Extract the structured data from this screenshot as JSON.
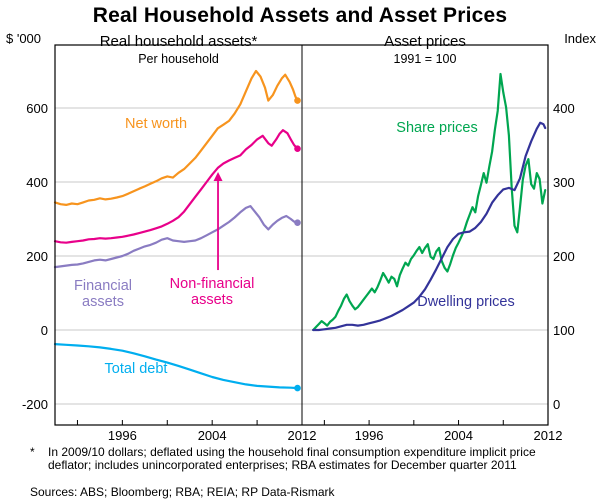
{
  "title": "Real Household Assets and Asset Prices",
  "left_axis_unit": "$ '000",
  "right_axis_unit": "Index",
  "footnote": {
    "marker": "*",
    "text": "In 2009/10 dollars; deflated using the household final consumption expenditure implicit price deflator; includes unincorporated enterprises; RBA estimates for December quarter 2011"
  },
  "sources": "Sources: ABS; Bloomberg; RBA; REIA; RP Data-Rismark",
  "chart_data": [
    {
      "type": "line",
      "panel": "left",
      "title": "Real household assets*",
      "subtitle": "Per household",
      "x_domain": [
        1990,
        2012
      ],
      "yticks": [
        -200,
        0,
        200,
        400,
        600
      ],
      "xticks_labeled": [
        1996,
        2004,
        2012
      ],
      "xticks_minor": [
        1992,
        1996,
        2000,
        2004,
        2008
      ],
      "ylabel_side": "left",
      "grid": true,
      "series": [
        {
          "name": "Net worth",
          "color": "#F7941E",
          "end_dot": true,
          "x": [
            1990,
            1990.5,
            1991,
            1991.5,
            1992,
            1992.5,
            1993,
            1993.5,
            1994,
            1994.5,
            1995,
            1995.5,
            1996,
            1996.5,
            1997,
            1997.5,
            1998,
            1998.5,
            1999,
            1999.5,
            2000,
            2000.5,
            2001,
            2001.5,
            2002,
            2002.5,
            2003,
            2003.5,
            2004,
            2004.5,
            2005,
            2005.5,
            2006,
            2006.5,
            2007,
            2007.5,
            2007.9,
            2008.3,
            2008.7,
            2009,
            2009.4,
            2009.8,
            2010.2,
            2010.5,
            2010.9,
            2011.2,
            2011.4,
            2011.6
          ],
          "values": [
            345,
            340,
            338,
            342,
            340,
            345,
            350,
            352,
            356,
            353,
            355,
            358,
            362,
            368,
            375,
            382,
            388,
            395,
            402,
            410,
            415,
            412,
            425,
            435,
            450,
            465,
            485,
            505,
            525,
            545,
            555,
            565,
            585,
            610,
            645,
            680,
            700,
            685,
            655,
            620,
            635,
            660,
            680,
            690,
            670,
            650,
            632,
            620
          ]
        },
        {
          "name": "Non-financial assets",
          "color": "#E8008A",
          "end_dot": true,
          "x": [
            1990,
            1990.5,
            1991,
            1991.5,
            1992,
            1992.5,
            1993,
            1993.5,
            1994,
            1994.5,
            1995,
            1995.5,
            1996,
            1996.5,
            1997,
            1997.5,
            1998,
            1998.5,
            1999,
            1999.5,
            2000,
            2000.5,
            2001,
            2001.5,
            2002,
            2002.5,
            2003,
            2003.5,
            2004,
            2004.5,
            2005,
            2005.5,
            2006,
            2006.5,
            2007,
            2007.5,
            2008,
            2008.5,
            2009,
            2009.3,
            2009.7,
            2010,
            2010.3,
            2010.7,
            2011,
            2011.3,
            2011.6
          ],
          "values": [
            240,
            237,
            236,
            238,
            240,
            242,
            245,
            246,
            248,
            247,
            248,
            250,
            252,
            255,
            258,
            262,
            266,
            270,
            275,
            280,
            287,
            295,
            305,
            320,
            340,
            360,
            380,
            400,
            420,
            438,
            450,
            458,
            465,
            472,
            488,
            500,
            515,
            525,
            505,
            498,
            515,
            530,
            540,
            532,
            515,
            500,
            490
          ]
        },
        {
          "name": "Financial assets",
          "color": "#8A7CC2",
          "end_dot": true,
          "x": [
            1990,
            1990.5,
            1991,
            1991.5,
            1992,
            1992.5,
            1993,
            1993.5,
            1994,
            1994.5,
            1995,
            1995.5,
            1996,
            1996.5,
            1997,
            1997.5,
            1998,
            1998.5,
            1999,
            1999.5,
            2000,
            2000.5,
            2001,
            2001.5,
            2002,
            2002.5,
            2003,
            2003.5,
            2004,
            2004.5,
            2005,
            2005.5,
            2006,
            2006.5,
            2007,
            2007.4,
            2007.8,
            2008.2,
            2008.6,
            2009,
            2009.4,
            2009.8,
            2010.2,
            2010.6,
            2011,
            2011.3,
            2011.6
          ],
          "values": [
            170,
            172,
            174,
            176,
            177,
            180,
            184,
            188,
            190,
            188,
            192,
            196,
            200,
            206,
            214,
            220,
            226,
            230,
            236,
            244,
            248,
            242,
            240,
            238,
            240,
            242,
            248,
            256,
            264,
            272,
            282,
            292,
            304,
            318,
            330,
            335,
            320,
            305,
            285,
            272,
            285,
            295,
            303,
            308,
            300,
            293,
            290
          ]
        },
        {
          "name": "Total debt",
          "color": "#00AEEF",
          "end_dot": true,
          "x": [
            1990,
            1991,
            1992,
            1993,
            1994,
            1995,
            1996,
            1997,
            1998,
            1999,
            2000,
            2001,
            2002,
            2003,
            2004,
            2005,
            2006,
            2007,
            2008,
            2009,
            2010,
            2011,
            2011.6
          ],
          "values": [
            -38,
            -40,
            -42,
            -44,
            -47,
            -51,
            -56,
            -63,
            -71,
            -80,
            -88,
            -97,
            -107,
            -117,
            -127,
            -135,
            -141,
            -147,
            -151,
            -153,
            -155,
            -156,
            -157
          ]
        }
      ],
      "annotations": [
        {
          "type": "arrow",
          "x": 2004.52,
          "from": 162,
          "to": 427,
          "color": "#E8008A"
        }
      ]
    },
    {
      "type": "line",
      "panel": "right",
      "title": "Asset prices",
      "subtitle": "1991 = 100",
      "x_domain": [
        1990,
        2012
      ],
      "yticks": [
        0,
        100,
        200,
        300,
        400
      ],
      "xticks_labeled": [
        1996,
        2004,
        2012
      ],
      "xticks_minor": [
        1992,
        1996,
        2000,
        2004,
        2008
      ],
      "ylabel_side": "right",
      "grid": true,
      "series": [
        {
          "name": "Share prices",
          "color": "#00A650",
          "end_dot": false,
          "x_start": 1991,
          "x_step": 0.25,
          "values": [
            100,
            104,
            108,
            112,
            109,
            106,
            111,
            114,
            118,
            126,
            133,
            142,
            148,
            139,
            133,
            128,
            131,
            136,
            141,
            146,
            151,
            156,
            151,
            158,
            167,
            177,
            171,
            164,
            172,
            169,
            159,
            174,
            183,
            191,
            187,
            196,
            201,
            207,
            212,
            204,
            211,
            216,
            199,
            196,
            206,
            211,
            193,
            184,
            179,
            189,
            201,
            211,
            218,
            226,
            234,
            246,
            256,
            266,
            259,
            281,
            296,
            312,
            299,
            321,
            341,
            371,
            396,
            446,
            421,
            401,
            363,
            292,
            241,
            232,
            266,
            303,
            322,
            331,
            297,
            291,
            312,
            304,
            271,
            289
          ]
        },
        {
          "name": "Dwelling prices",
          "color": "#333399",
          "end_dot": false,
          "x": [
            1991,
            1991.5,
            1992,
            1992.5,
            1993,
            1993.5,
            1994,
            1994.5,
            1995,
            1995.5,
            1996,
            1996.5,
            1997,
            1997.5,
            1998,
            1998.5,
            1999,
            1999.5,
            2000,
            2000.5,
            2001,
            2001.5,
            2002,
            2002.5,
            2003,
            2003.5,
            2004,
            2004.5,
            2005,
            2005.5,
            2006,
            2006.5,
            2007,
            2007.5,
            2008,
            2008.5,
            2009,
            2009.5,
            2010,
            2010.5,
            2011,
            2011.3,
            2011.6,
            2011.75
          ],
          "values": [
            100,
            100,
            101,
            102,
            103,
            105,
            107,
            107,
            106,
            107,
            109,
            111,
            113,
            116,
            119,
            123,
            127,
            132,
            137,
            145,
            155,
            168,
            182,
            197,
            212,
            223,
            230,
            232,
            233,
            238,
            246,
            257,
            272,
            282,
            290,
            292,
            289,
            305,
            335,
            355,
            372,
            380,
            378,
            373
          ]
        }
      ]
    }
  ]
}
